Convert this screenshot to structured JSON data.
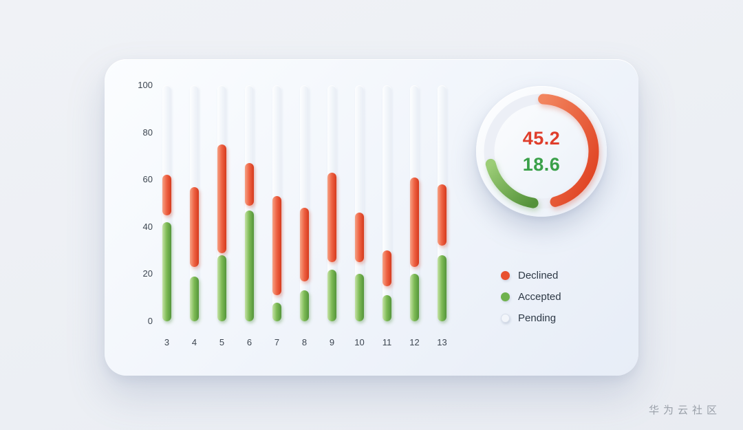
{
  "watermark": "华为云社区",
  "colors": {
    "declined": "#e8512f",
    "accepted": "#6fb24d",
    "pending": "#f1f4f9",
    "card_background": "#f1f5fb",
    "page_background": "#edeff3"
  },
  "legend": [
    {
      "label": "Declined",
      "color": "#e8512f"
    },
    {
      "label": "Accepted",
      "color": "#6fb24d"
    },
    {
      "label": "Pending",
      "color": "#f2f5fa"
    }
  ],
  "chart_data": [
    {
      "type": "bar",
      "title": "",
      "xlabel": "",
      "ylabel": "",
      "categories": [
        "3",
        "4",
        "5",
        "6",
        "7",
        "8",
        "9",
        "10",
        "11",
        "12",
        "13"
      ],
      "series": [
        {
          "name": "Accepted",
          "color": "#6fb24d",
          "values": [
            42,
            19,
            28,
            47,
            8,
            13,
            22,
            20,
            11,
            20,
            28
          ]
        },
        {
          "name": "Declined",
          "color": "#e8512f",
          "ranges_from_to": [
            [
              45,
              62
            ],
            [
              23,
              57
            ],
            [
              29,
              75
            ],
            [
              49,
              67
            ],
            [
              11,
              53
            ],
            [
              17,
              48
            ],
            [
              25,
              63
            ],
            [
              25,
              46
            ],
            [
              15,
              30
            ],
            [
              23,
              61
            ],
            [
              32,
              58
            ]
          ]
        },
        {
          "name": "Pending",
          "color": "#f1f4f9",
          "values": [
            100,
            100,
            100,
            100,
            100,
            100,
            100,
            100,
            100,
            100,
            100
          ]
        }
      ],
      "ylim": [
        0,
        100
      ],
      "yticks": [
        0,
        20,
        40,
        60,
        80,
        100
      ],
      "grid": false,
      "legend_position": "right"
    },
    {
      "type": "pie",
      "subtype": "radial-gauge",
      "max": 100,
      "values": [
        {
          "name": "Declined",
          "value": 45.2,
          "color": "#e8512f",
          "start_angle_deg": 2
        },
        {
          "name": "Accepted",
          "value": 18.6,
          "color": "#6fb24d",
          "start_angle_deg": 189
        }
      ]
    }
  ]
}
